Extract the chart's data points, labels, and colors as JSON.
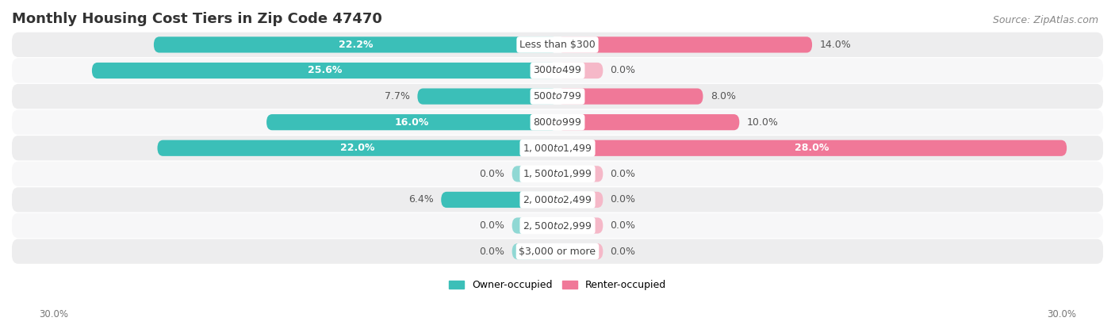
{
  "title": "Monthly Housing Cost Tiers in Zip Code 47470",
  "source": "Source: ZipAtlas.com",
  "categories": [
    "Less than $300",
    "$300 to $499",
    "$500 to $799",
    "$800 to $999",
    "$1,000 to $1,499",
    "$1,500 to $1,999",
    "$2,000 to $2,499",
    "$2,500 to $2,999",
    "$3,000 or more"
  ],
  "owner_values": [
    22.2,
    25.6,
    7.7,
    16.0,
    22.0,
    0.0,
    6.4,
    0.0,
    0.0
  ],
  "renter_values": [
    14.0,
    0.0,
    8.0,
    10.0,
    28.0,
    0.0,
    0.0,
    0.0,
    0.0
  ],
  "owner_color": "#3BBFB8",
  "renter_color": "#F07898",
  "owner_color_zero": "#90D8D4",
  "renter_color_zero": "#F5B8C8",
  "row_color_odd": "#EDEDEE",
  "row_color_even": "#F7F7F8",
  "axis_max": 30.0,
  "axis_label_left": "30.0%",
  "axis_label_right": "30.0%",
  "legend_owner": "Owner-occupied",
  "legend_renter": "Renter-occupied",
  "title_fontsize": 13,
  "source_fontsize": 9,
  "bar_height": 0.62,
  "label_fontsize": 9,
  "category_fontsize": 9,
  "zero_stub": 2.5
}
